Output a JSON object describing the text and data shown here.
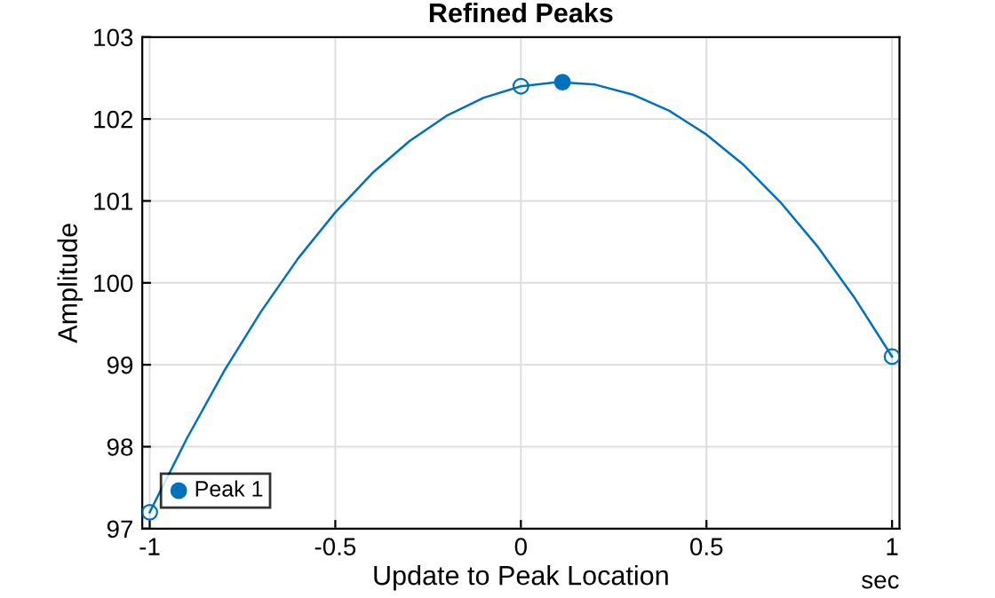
{
  "chart_data": {
    "type": "line",
    "title": "Refined Peaks",
    "xlabel": "Update to Peak Location",
    "ylabel": "Amplitude",
    "series": [
      {
        "color": "#0072bd",
        "marker": "none",
        "x": [
          -1,
          -0.9,
          -0.8,
          -0.7,
          -0.6,
          -0.5,
          -0.4,
          -0.3,
          -0.2,
          -0.1,
          0,
          0.1,
          0.2,
          0.3,
          0.4,
          0.5,
          0.6,
          0.7,
          0.8,
          0.9,
          1
        ],
        "values": [
          97.2,
          98.1,
          98.92,
          99.65,
          100.3,
          100.86,
          101.34,
          101.73,
          102.04,
          102.26,
          102.4,
          102.45,
          102.42,
          102.3,
          102.1,
          101.81,
          101.44,
          100.98,
          100.44,
          99.81,
          99.1
        ]
      },
      {
        "type": "scatter",
        "color": "#0072bd",
        "marker": "circle",
        "x": [
          -1,
          0,
          1
        ],
        "values": [
          97.2,
          102.4,
          99.1
        ]
      },
      {
        "type": "scatter",
        "name": "Peak 1",
        "color": "#0072bd",
        "marker": "circle",
        "x": [
          0.112
        ],
        "values": [
          102.45
        ]
      }
    ],
    "xlim": [
      -1.02,
      1.02
    ],
    "ylim": [
      97,
      103
    ],
    "xticks": [
      -1,
      -0.5,
      0,
      0.5,
      1
    ],
    "yticks": [
      97,
      98,
      99,
      100,
      101,
      102,
      103
    ],
    "grid": true,
    "legend": "bottom left",
    "annotations": [
      "sec"
    ]
  }
}
